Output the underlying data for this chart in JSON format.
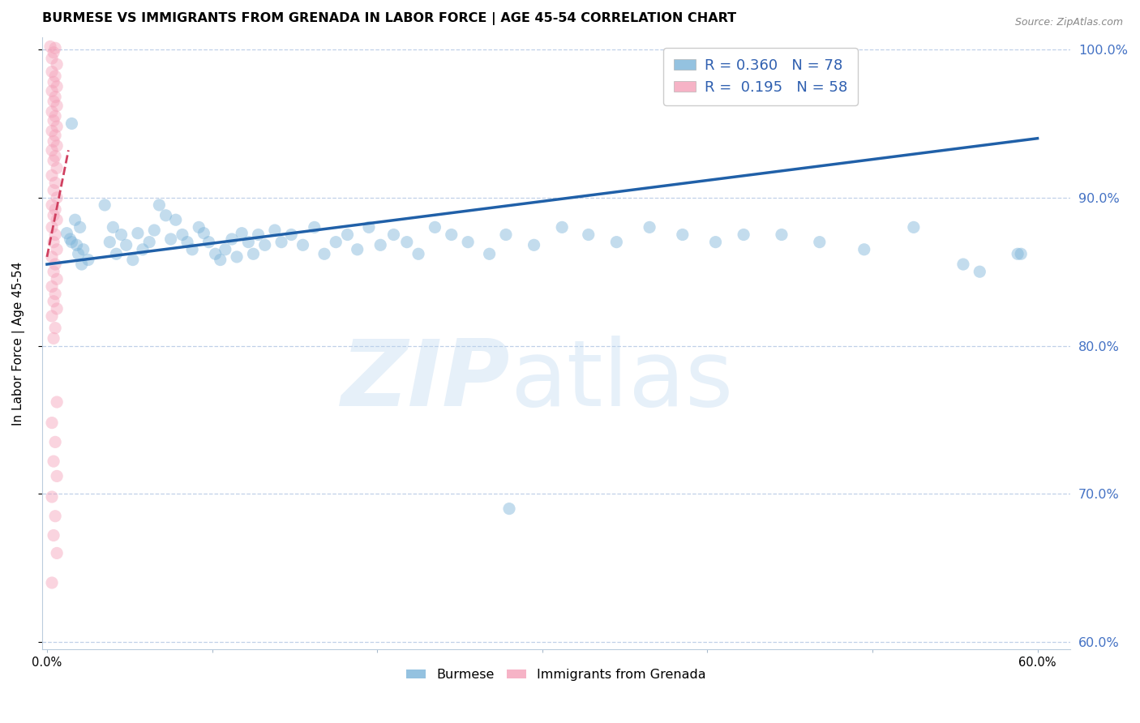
{
  "title": "BURMESE VS IMMIGRANTS FROM GRENADA IN LABOR FORCE | AGE 45-54 CORRELATION CHART",
  "source": "Source: ZipAtlas.com",
  "ylabel": "In Labor Force | Age 45-54",
  "xlim": [
    -0.003,
    0.62
  ],
  "ylim": [
    0.595,
    1.008
  ],
  "xticks": [
    0.0,
    0.1,
    0.2,
    0.3,
    0.4,
    0.5,
    0.6
  ],
  "xticklabels": [
    "0.0%",
    "",
    "",
    "",
    "",
    "",
    "60.0%"
  ],
  "yticks": [
    0.6,
    0.7,
    0.8,
    0.9,
    1.0
  ],
  "yticklabels": [
    "60.0%",
    "70.0%",
    "80.0%",
    "90.0%",
    "100.0%"
  ],
  "blue_color": "#7ab3d9",
  "pink_color": "#f4a0b8",
  "blue_line_color": "#2060a8",
  "pink_line_color": "#d04060",
  "legend_blue_r": "R = 0.360",
  "legend_blue_n": "N = 78",
  "legend_pink_r": "R =  0.195",
  "legend_pink_n": "N = 58",
  "text_color": "#3060b0",
  "grid_color": "#c0d0e8",
  "title_fontsize": 11.5,
  "axis_label_fontsize": 11,
  "tick_fontsize": 10.5,
  "right_tick_color": "#4472c4",
  "scatter_size": 120,
  "scatter_alpha": 0.45,
  "blue_trendline_x": [
    0.0,
    0.6
  ],
  "blue_trendline_y": [
    0.855,
    0.94
  ],
  "pink_trendline_x": [
    0.0,
    0.013
  ],
  "pink_trendline_y": [
    0.86,
    0.932
  ],
  "blue_scatter_x": [
    0.012,
    0.015,
    0.018,
    0.02,
    0.022,
    0.025,
    0.014,
    0.017,
    0.019,
    0.021,
    0.04,
    0.045,
    0.048,
    0.052,
    0.035,
    0.038,
    0.042,
    0.055,
    0.058,
    0.062,
    0.068,
    0.072,
    0.065,
    0.075,
    0.078,
    0.082,
    0.085,
    0.088,
    0.092,
    0.095,
    0.098,
    0.102,
    0.105,
    0.108,
    0.112,
    0.115,
    0.118,
    0.122,
    0.125,
    0.128,
    0.132,
    0.138,
    0.142,
    0.148,
    0.155,
    0.162,
    0.168,
    0.175,
    0.182,
    0.188,
    0.195,
    0.202,
    0.21,
    0.218,
    0.225,
    0.235,
    0.245,
    0.255,
    0.268,
    0.278,
    0.295,
    0.312,
    0.328,
    0.345,
    0.365,
    0.385,
    0.405,
    0.422,
    0.445,
    0.468,
    0.495,
    0.525,
    0.555,
    0.588,
    0.015,
    0.28,
    0.565,
    0.59
  ],
  "blue_scatter_y": [
    0.876,
    0.87,
    0.868,
    0.88,
    0.865,
    0.858,
    0.872,
    0.885,
    0.862,
    0.855,
    0.88,
    0.875,
    0.868,
    0.858,
    0.895,
    0.87,
    0.862,
    0.876,
    0.865,
    0.87,
    0.895,
    0.888,
    0.878,
    0.872,
    0.885,
    0.875,
    0.87,
    0.865,
    0.88,
    0.876,
    0.87,
    0.862,
    0.858,
    0.865,
    0.872,
    0.86,
    0.876,
    0.87,
    0.862,
    0.875,
    0.868,
    0.878,
    0.87,
    0.875,
    0.868,
    0.88,
    0.862,
    0.87,
    0.875,
    0.865,
    0.88,
    0.868,
    0.875,
    0.87,
    0.862,
    0.88,
    0.875,
    0.87,
    0.862,
    0.875,
    0.868,
    0.88,
    0.875,
    0.87,
    0.88,
    0.875,
    0.87,
    0.875,
    0.875,
    0.87,
    0.865,
    0.88,
    0.855,
    0.862,
    0.95,
    0.69,
    0.85,
    0.862
  ],
  "pink_scatter_x": [
    0.002,
    0.004,
    0.003,
    0.005,
    0.006,
    0.003,
    0.005,
    0.004,
    0.006,
    0.003,
    0.005,
    0.004,
    0.006,
    0.003,
    0.005,
    0.004,
    0.006,
    0.003,
    0.005,
    0.004,
    0.006,
    0.003,
    0.005,
    0.004,
    0.006,
    0.003,
    0.005,
    0.004,
    0.006,
    0.003,
    0.005,
    0.004,
    0.006,
    0.003,
    0.005,
    0.004,
    0.006,
    0.003,
    0.005,
    0.004,
    0.006,
    0.003,
    0.005,
    0.004,
    0.006,
    0.003,
    0.005,
    0.004,
    0.006,
    0.003,
    0.005,
    0.004,
    0.006,
    0.003,
    0.005,
    0.004,
    0.006,
    0.003
  ],
  "pink_scatter_y": [
    1.002,
    0.998,
    0.994,
    1.001,
    0.99,
    0.985,
    0.982,
    0.978,
    0.975,
    0.972,
    0.968,
    0.965,
    0.962,
    0.958,
    0.955,
    0.952,
    0.948,
    0.945,
    0.942,
    0.938,
    0.935,
    0.932,
    0.928,
    0.925,
    0.92,
    0.915,
    0.91,
    0.905,
    0.9,
    0.895,
    0.892,
    0.888,
    0.885,
    0.88,
    0.875,
    0.87,
    0.865,
    0.86,
    0.855,
    0.85,
    0.845,
    0.84,
    0.835,
    0.83,
    0.825,
    0.82,
    0.812,
    0.805,
    0.762,
    0.748,
    0.735,
    0.722,
    0.712,
    0.698,
    0.685,
    0.672,
    0.66,
    0.64
  ]
}
